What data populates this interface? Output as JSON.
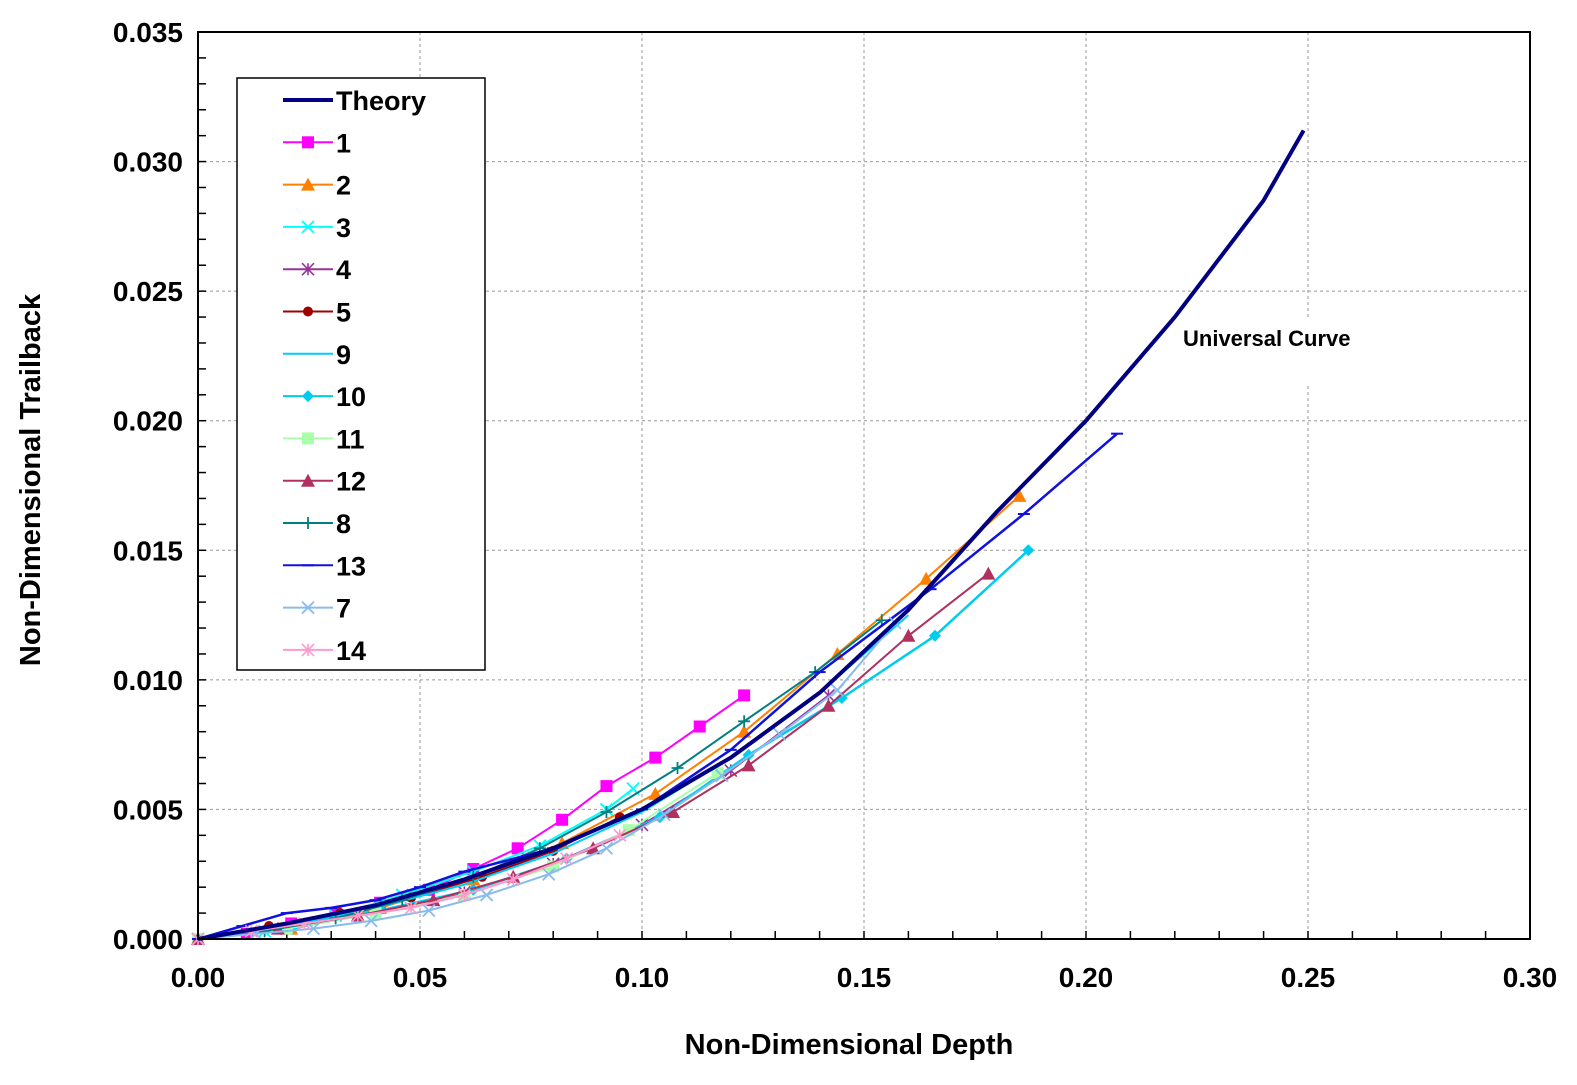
{
  "chart_data": {
    "type": "line",
    "title": "",
    "xlabel": "Non-Dimensional Depth",
    "ylabel": "Non-Dimensional Trailback",
    "xlim": [
      0,
      0.3
    ],
    "ylim": [
      0,
      0.035
    ],
    "x_ticks": [
      "0.00",
      "0.05",
      "0.10",
      "0.15",
      "0.20",
      "0.25",
      "0.30"
    ],
    "y_ticks": [
      "0.000",
      "0.005",
      "0.010",
      "0.015",
      "0.020",
      "0.025",
      "0.030",
      "0.035"
    ],
    "x_tick_values": [
      0,
      0.05,
      0.1,
      0.15,
      0.2,
      0.25,
      0.3
    ],
    "y_tick_values": [
      0,
      0.005,
      0.01,
      0.015,
      0.02,
      0.025,
      0.03,
      0.035
    ],
    "grid": true,
    "legend_position": "top-left",
    "annotation": "Universal Curve",
    "series": [
      {
        "name": "Theory",
        "color": "#000080",
        "marker": "none",
        "width": 4,
        "x": [
          0,
          0.02,
          0.04,
          0.06,
          0.08,
          0.1,
          0.12,
          0.14,
          0.16,
          0.18,
          0.2,
          0.22,
          0.24,
          0.249
        ],
        "y": [
          0,
          0.0006,
          0.0013,
          0.0023,
          0.0035,
          0.005,
          0.007,
          0.0095,
          0.0127,
          0.0165,
          0.02,
          0.024,
          0.0285,
          0.0312
        ]
      },
      {
        "name": "1",
        "color": "#FF00FF",
        "marker": "square",
        "width": 2,
        "x": [
          0,
          0.011,
          0.021,
          0.031,
          0.041,
          0.052,
          0.062,
          0.072,
          0.082,
          0.092,
          0.103,
          0.113,
          0.123
        ],
        "y": [
          0,
          0.0002,
          0.0006,
          0.001,
          0.0014,
          0.0019,
          0.0027,
          0.0035,
          0.0046,
          0.0059,
          0.007,
          0.0082,
          0.0094
        ]
      },
      {
        "name": "2",
        "color": "#FF7F00",
        "marker": "triangle",
        "width": 2,
        "x": [
          0,
          0.021,
          0.041,
          0.062,
          0.082,
          0.103,
          0.123,
          0.144,
          0.164,
          0.185
        ],
        "y": [
          0,
          0.0004,
          0.0012,
          0.0023,
          0.0037,
          0.0056,
          0.008,
          0.011,
          0.0139,
          0.0171
        ]
      },
      {
        "name": "3",
        "color": "#00FFFF",
        "marker": "x",
        "width": 2,
        "x": [
          0,
          0.015,
          0.031,
          0.046,
          0.062,
          0.077,
          0.092,
          0.098
        ],
        "y": [
          0,
          0.0003,
          0.0009,
          0.0017,
          0.0026,
          0.0036,
          0.005,
          0.0058
        ]
      },
      {
        "name": "4",
        "color": "#993399",
        "marker": "star",
        "width": 2,
        "x": [
          0,
          0.02,
          0.04,
          0.06,
          0.08,
          0.1,
          0.12,
          0.142
        ],
        "y": [
          0,
          0.0004,
          0.001,
          0.0018,
          0.0029,
          0.0044,
          0.0065,
          0.0094
        ]
      },
      {
        "name": "5",
        "color": "#A00000",
        "marker": "circle",
        "width": 2,
        "x": [
          0,
          0.016,
          0.032,
          0.048,
          0.064,
          0.08,
          0.095
        ],
        "y": [
          0,
          0.0005,
          0.001,
          0.0016,
          0.0024,
          0.0034,
          0.0047
        ]
      },
      {
        "name": "9",
        "color": "#00CCFF",
        "marker": "none",
        "width": 2,
        "x": [
          0,
          0.02,
          0.04,
          0.06,
          0.08,
          0.1,
          0.12,
          0.14,
          0.16
        ],
        "y": [
          0,
          0.0005,
          0.0012,
          0.0021,
          0.0033,
          0.0049,
          0.007,
          0.0095,
          0.0125
        ]
      },
      {
        "name": "10",
        "color": "#00CCEE",
        "marker": "diamond",
        "width": 2.5,
        "x": [
          0,
          0.021,
          0.041,
          0.062,
          0.083,
          0.104,
          0.124,
          0.145,
          0.166,
          0.187
        ],
        "y": [
          0,
          0.0004,
          0.0011,
          0.0019,
          0.0031,
          0.0047,
          0.0071,
          0.0093,
          0.0117,
          0.015
        ]
      },
      {
        "name": "11",
        "color": "#AAFFAA",
        "marker": "square",
        "width": 2,
        "x": [
          0,
          0.02,
          0.04,
          0.06,
          0.08,
          0.097,
          0.117
        ],
        "y": [
          0,
          0.0004,
          0.001,
          0.0017,
          0.0028,
          0.0042,
          0.0064
        ]
      },
      {
        "name": "12",
        "color": "#B03060",
        "marker": "triangle",
        "width": 2,
        "x": [
          0,
          0.018,
          0.036,
          0.053,
          0.071,
          0.089,
          0.107,
          0.124,
          0.142,
          0.16,
          0.178
        ],
        "y": [
          0,
          0.0004,
          0.0009,
          0.0015,
          0.0024,
          0.0035,
          0.0049,
          0.0067,
          0.009,
          0.0117,
          0.0141
        ]
      },
      {
        "name": "8",
        "color": "#008080",
        "marker": "plus",
        "width": 2,
        "x": [
          0,
          0.015,
          0.031,
          0.046,
          0.062,
          0.077,
          0.092,
          0.108,
          0.123,
          0.139,
          0.154
        ],
        "y": [
          0,
          0.0003,
          0.0008,
          0.0015,
          0.0024,
          0.0035,
          0.0049,
          0.0066,
          0.0084,
          0.0103,
          0.0123
        ]
      },
      {
        "name": "13",
        "color": "#1010E0",
        "marker": "dash",
        "width": 2.5,
        "x": [
          0,
          0.01,
          0.02,
          0.03,
          0.04,
          0.05,
          0.06,
          0.08,
          0.1,
          0.12,
          0.14,
          0.165,
          0.186,
          0.207
        ],
        "y": [
          0,
          0.0005,
          0.001,
          0.0012,
          0.0015,
          0.002,
          0.0026,
          0.0035,
          0.005,
          0.0073,
          0.0103,
          0.0135,
          0.0164,
          0.0195
        ]
      },
      {
        "name": "7",
        "color": "#88BBEE",
        "marker": "x",
        "width": 2,
        "x": [
          0,
          0.013,
          0.026,
          0.039,
          0.052,
          0.065,
          0.079,
          0.092,
          0.105,
          0.118,
          0.131,
          0.144,
          0.157
        ],
        "y": [
          0,
          0.0002,
          0.0004,
          0.0007,
          0.0011,
          0.0017,
          0.0025,
          0.0035,
          0.0048,
          0.0063,
          0.0079,
          0.0096,
          0.0122
        ]
      },
      {
        "name": "14",
        "color": "#FF99CC",
        "marker": "star",
        "width": 2,
        "x": [
          0,
          0.012,
          0.024,
          0.036,
          0.048,
          0.06,
          0.071,
          0.083,
          0.095
        ],
        "y": [
          0,
          0.0003,
          0.0006,
          0.0009,
          0.0012,
          0.0017,
          0.0023,
          0.0031,
          0.004
        ]
      }
    ]
  }
}
